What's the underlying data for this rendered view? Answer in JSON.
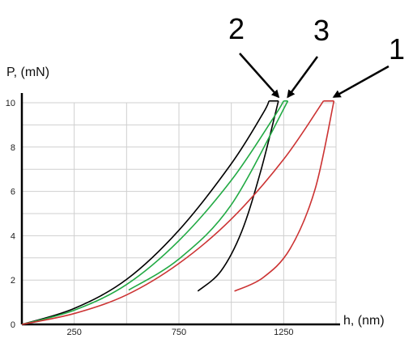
{
  "chart_data": {
    "type": "line",
    "title": "",
    "xlabel": "h, (nm)",
    "ylabel": "P, (mN)",
    "xlim": [
      0,
      1500
    ],
    "ylim": [
      0,
      10
    ],
    "x_ticks": [
      250,
      750,
      1250
    ],
    "y_ticks": [
      0,
      2,
      4,
      6,
      8,
      10
    ],
    "grid": true,
    "legend": "none",
    "series": [
      {
        "color": "#000000",
        "loading": [
          [
            0,
            0
          ],
          [
            250,
            0.72
          ],
          [
            500,
            2.03
          ],
          [
            750,
            4.25
          ],
          [
            1000,
            7.25
          ],
          [
            1150,
            9.5
          ],
          [
            1180,
            10.08
          ]
        ],
        "hold": [
          [
            1180,
            10.08
          ],
          [
            1225,
            10.08
          ]
        ],
        "unloading": [
          [
            1225,
            10.08
          ],
          [
            1140,
            6.9
          ],
          [
            1050,
            4.2
          ],
          [
            950,
            2.4
          ],
          [
            840,
            1.5
          ]
        ]
      },
      {
        "color": "#22aa44",
        "loading": [
          [
            0,
            0
          ],
          [
            250,
            0.64
          ],
          [
            500,
            1.8
          ],
          [
            750,
            3.78
          ],
          [
            1000,
            6.5
          ],
          [
            1200,
            9.3
          ],
          [
            1250,
            10.08
          ]
        ],
        "hold": [
          [
            1250,
            10.08
          ],
          [
            1270,
            10.08
          ]
        ],
        "unloading": [
          [
            1270,
            10.08
          ],
          [
            1000,
            5.4
          ],
          [
            750,
            2.95
          ],
          [
            510,
            1.55
          ]
        ]
      },
      {
        "color": "#cc3333",
        "loading": [
          [
            0,
            0
          ],
          [
            250,
            0.49
          ],
          [
            500,
            1.33
          ],
          [
            750,
            2.75
          ],
          [
            1000,
            4.75
          ],
          [
            1250,
            7.45
          ],
          [
            1440,
            10.08
          ]
        ],
        "hold": [
          [
            1440,
            10.08
          ],
          [
            1490,
            10.08
          ]
        ],
        "unloading": [
          [
            1490,
            10.08
          ],
          [
            1400,
            6.1
          ],
          [
            1280,
            3.4
          ],
          [
            1150,
            2.1
          ],
          [
            1015,
            1.5
          ]
        ]
      }
    ],
    "annotations": [
      {
        "label": "2",
        "arrow_to": [
          1225,
          10.08
        ]
      },
      {
        "label": "3",
        "arrow_to": [
          1270,
          10.08
        ]
      },
      {
        "label": "1",
        "arrow_to": [
          1490,
          10.08
        ]
      }
    ]
  }
}
